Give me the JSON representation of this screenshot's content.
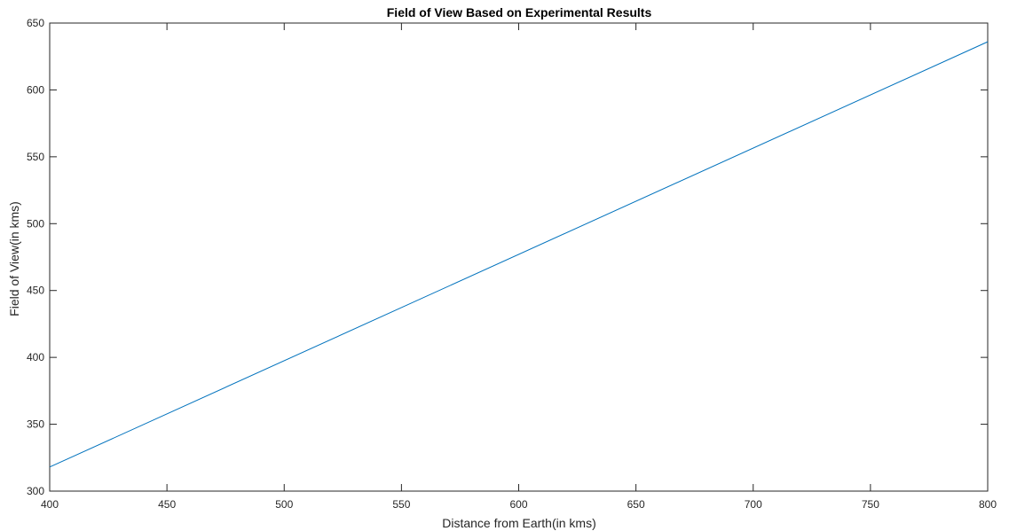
{
  "chart_data": {
    "type": "line",
    "title": "Field of View Based on Experimental Results",
    "xlabel": "Distance from Earth(in kms)",
    "ylabel": "Field of View(in kms)",
    "xlim": [
      400,
      800
    ],
    "ylim": [
      300,
      650
    ],
    "xticks": [
      400,
      450,
      500,
      550,
      600,
      650,
      700,
      750,
      800
    ],
    "yticks": [
      300,
      350,
      400,
      450,
      500,
      550,
      600,
      650
    ],
    "grid": false,
    "series": [
      {
        "name": "Field of View",
        "color": "#0072BD",
        "x": [
          400,
          800
        ],
        "y": [
          318,
          636
        ]
      }
    ]
  }
}
